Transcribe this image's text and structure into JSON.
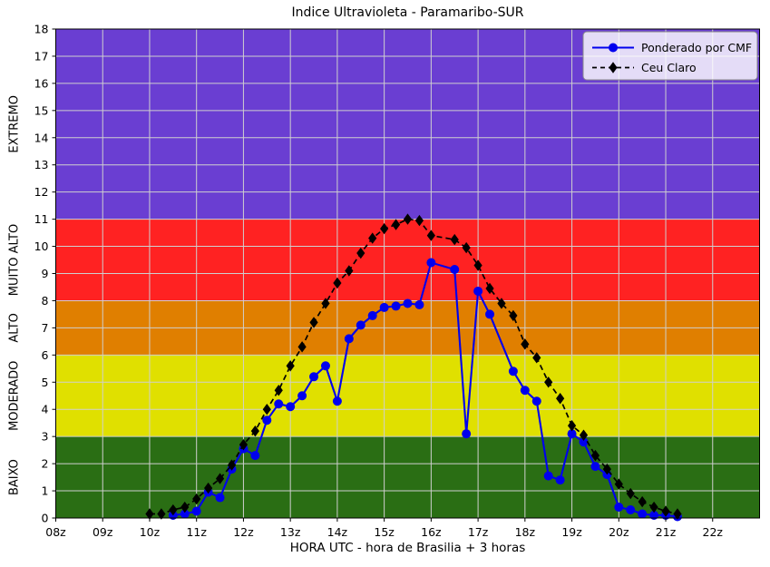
{
  "chart_data": {
    "type": "line",
    "title": "Indice Ultravioleta - Paramaribo-SUR",
    "xlabel": "HORA UTC - hora de Brasilia + 3 horas",
    "ylabel": "",
    "xlim": [
      8,
      23
    ],
    "ylim": [
      0,
      18
    ],
    "grid": true,
    "grid_color": "#CFCFCF",
    "xticks": [
      {
        "t": 8,
        "label": "08z"
      },
      {
        "t": 9,
        "label": "09z"
      },
      {
        "t": 10,
        "label": "10z"
      },
      {
        "t": 11,
        "label": "11z"
      },
      {
        "t": 12,
        "label": "12z"
      },
      {
        "t": 13,
        "label": "13z"
      },
      {
        "t": 14,
        "label": "14z"
      },
      {
        "t": 15,
        "label": "15z"
      },
      {
        "t": 16,
        "label": "16z"
      },
      {
        "t": 17,
        "label": "17z"
      },
      {
        "t": 18,
        "label": "18z"
      },
      {
        "t": 19,
        "label": "19z"
      },
      {
        "t": 20,
        "label": "20z"
      },
      {
        "t": 21,
        "label": "21z"
      },
      {
        "t": 22,
        "label": "22z"
      }
    ],
    "yticks": [
      0,
      1,
      2,
      3,
      4,
      5,
      6,
      7,
      8,
      9,
      10,
      11,
      12,
      13,
      14,
      15,
      16,
      17,
      18
    ],
    "bands": [
      {
        "from": 0,
        "to": 3,
        "color": "#2A6E14",
        "label": "BAIXO",
        "label_color": "#008000"
      },
      {
        "from": 3,
        "to": 6,
        "color": "#E0E000",
        "label": "MODERADO",
        "label_color": "#C9C900"
      },
      {
        "from": 6,
        "to": 8,
        "color": "#E07F00",
        "label": "ALTO",
        "label_color": "#FFA500"
      },
      {
        "from": 8,
        "to": 11,
        "color": "#FF2222",
        "label": "MUITO ALTO",
        "label_color": "#FF0000"
      },
      {
        "from": 11,
        "to": 18,
        "color": "#6A3ED2",
        "label": "EXTREMO",
        "label_color": "#0000FF"
      }
    ],
    "legend": {
      "position": "top-right"
    },
    "series": [
      {
        "name": "Ponderado por CMF",
        "color": "#0000EE",
        "marker": "circle",
        "line": "solid",
        "points": [
          [
            10.5,
            0.1
          ],
          [
            10.75,
            0.15
          ],
          [
            11.0,
            0.25
          ],
          [
            11.25,
            0.95
          ],
          [
            11.5,
            0.75
          ],
          [
            11.75,
            1.8
          ],
          [
            12.0,
            2.55
          ],
          [
            12.25,
            2.3
          ],
          [
            12.5,
            3.6
          ],
          [
            12.75,
            4.2
          ],
          [
            13.0,
            4.1
          ],
          [
            13.25,
            4.5
          ],
          [
            13.5,
            5.2
          ],
          [
            13.75,
            5.6
          ],
          [
            14.0,
            4.3
          ],
          [
            14.25,
            6.6
          ],
          [
            14.5,
            7.1
          ],
          [
            14.75,
            7.45
          ],
          [
            15.0,
            7.75
          ],
          [
            15.25,
            7.8
          ],
          [
            15.5,
            7.9
          ],
          [
            15.75,
            7.85
          ],
          [
            16.0,
            9.4
          ],
          [
            16.5,
            9.15
          ],
          [
            16.75,
            3.1
          ],
          [
            17.0,
            8.35
          ],
          [
            17.25,
            7.5
          ],
          [
            17.75,
            5.4
          ],
          [
            18.0,
            4.7
          ],
          [
            18.25,
            4.3
          ],
          [
            18.5,
            1.55
          ],
          [
            18.75,
            1.4
          ],
          [
            19.0,
            3.1
          ],
          [
            19.25,
            2.8
          ],
          [
            19.5,
            1.9
          ],
          [
            19.75,
            1.6
          ],
          [
            20.0,
            0.4
          ],
          [
            20.25,
            0.3
          ],
          [
            20.5,
            0.15
          ],
          [
            20.75,
            0.1
          ],
          [
            21.0,
            0.1
          ],
          [
            21.25,
            0.05
          ]
        ]
      },
      {
        "name": "Ceu Claro",
        "color": "#000000",
        "marker": "diamond",
        "line": "dashed",
        "points": [
          [
            10.0,
            0.15
          ],
          [
            10.25,
            0.15
          ],
          [
            10.5,
            0.3
          ],
          [
            10.75,
            0.4
          ],
          [
            11.0,
            0.7
          ],
          [
            11.25,
            1.1
          ],
          [
            11.5,
            1.45
          ],
          [
            11.75,
            1.95
          ],
          [
            12.0,
            2.7
          ],
          [
            12.25,
            3.2
          ],
          [
            12.5,
            4.0
          ],
          [
            12.75,
            4.7
          ],
          [
            13.0,
            5.6
          ],
          [
            13.25,
            6.3
          ],
          [
            13.5,
            7.2
          ],
          [
            13.75,
            7.9
          ],
          [
            14.0,
            8.65
          ],
          [
            14.25,
            9.1
          ],
          [
            14.5,
            9.75
          ],
          [
            14.75,
            10.3
          ],
          [
            15.0,
            10.65
          ],
          [
            15.25,
            10.8
          ],
          [
            15.5,
            11.0
          ],
          [
            15.75,
            10.95
          ],
          [
            16.0,
            10.4
          ],
          [
            16.5,
            10.25
          ],
          [
            16.75,
            9.95
          ],
          [
            17.0,
            9.3
          ],
          [
            17.25,
            8.45
          ],
          [
            17.5,
            7.9
          ],
          [
            17.75,
            7.45
          ],
          [
            18.0,
            6.4
          ],
          [
            18.25,
            5.9
          ],
          [
            18.5,
            5.0
          ],
          [
            18.75,
            4.4
          ],
          [
            19.0,
            3.4
          ],
          [
            19.25,
            3.05
          ],
          [
            19.5,
            2.3
          ],
          [
            19.75,
            1.8
          ],
          [
            20.0,
            1.25
          ],
          [
            20.25,
            0.9
          ],
          [
            20.5,
            0.6
          ],
          [
            20.75,
            0.4
          ],
          [
            21.0,
            0.25
          ],
          [
            21.25,
            0.15
          ]
        ]
      }
    ]
  }
}
